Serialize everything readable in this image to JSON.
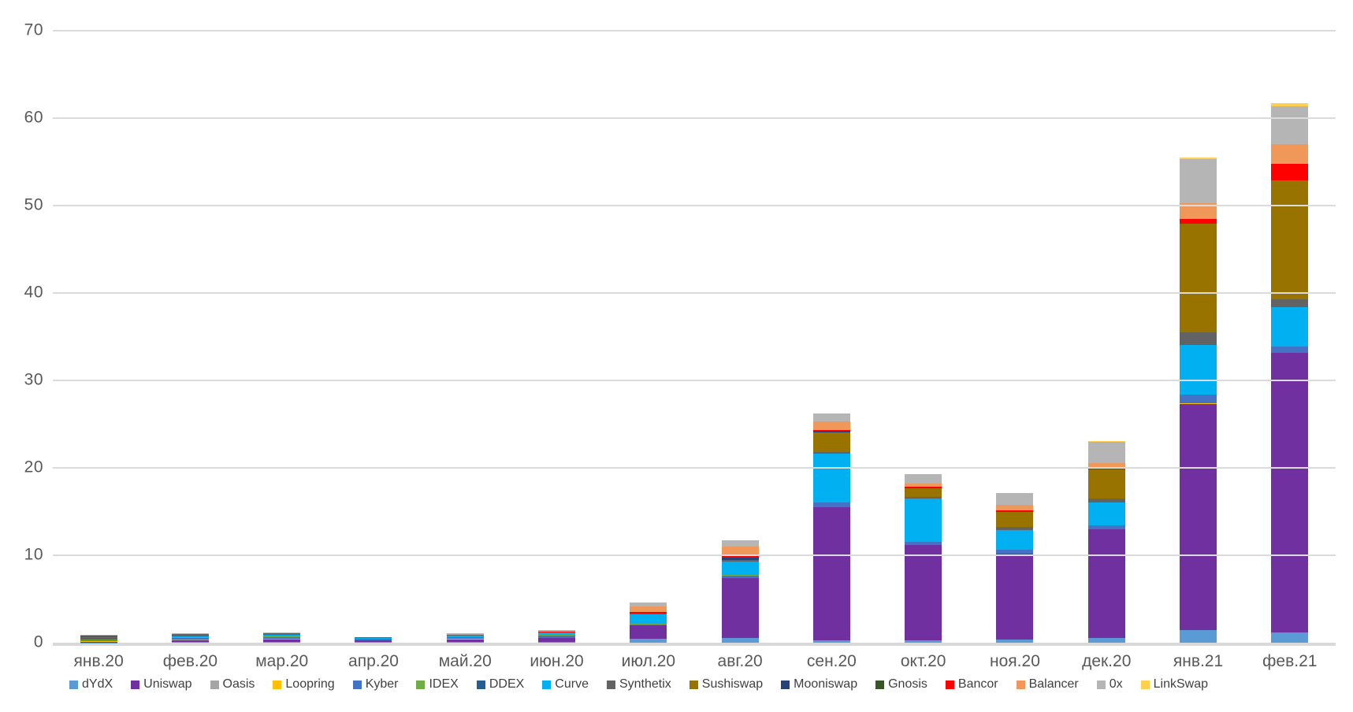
{
  "chart_data": {
    "type": "bar",
    "variant": "stacked",
    "title": "",
    "xlabel": "",
    "ylabel": "",
    "grid": true,
    "legend_position": "bottom",
    "y_axis": {
      "min": 0,
      "max": 70,
      "step": 10,
      "tick_labels": [
        "0",
        "10",
        "20",
        "30",
        "40",
        "50",
        "60",
        "70"
      ]
    },
    "categories": [
      "янв.20",
      "фев.20",
      "мар.20",
      "апр.20",
      "май.20",
      "июн.20",
      "июл.20",
      "авг.20",
      "сен.20",
      "окт.20",
      "ноя.20",
      "дек.20",
      "янв.21",
      "фев.21"
    ],
    "series": [
      {
        "name": "dYdX",
        "color": "#5B9BD5",
        "values": [
          0.03,
          0.05,
          0.05,
          0.1,
          0.07,
          0.05,
          0.45,
          0.55,
          0.25,
          0.3,
          0.4,
          0.5,
          1.4,
          1.2
        ]
      },
      {
        "name": "Uniswap",
        "color": "#7030A0",
        "values": [
          0.05,
          0.25,
          0.35,
          0.2,
          0.33,
          0.5,
          1.5,
          6.85,
          15.25,
          10.9,
          9.8,
          12.5,
          25.9,
          32.0
        ]
      },
      {
        "name": "Oasis",
        "color": "#A5A5A5",
        "values": [
          0.05,
          0.05,
          0.05,
          0,
          0,
          0,
          0,
          0,
          0,
          0,
          0,
          0,
          0,
          0
        ]
      },
      {
        "name": "Loopring",
        "color": "#FFC000",
        "values": [
          0.02,
          0,
          0,
          0,
          0.05,
          0.03,
          0,
          0,
          0,
          0,
          0,
          0,
          0.1,
          0
        ]
      },
      {
        "name": "Kyber",
        "color": "#4472C4",
        "values": [
          0.1,
          0.2,
          0.2,
          0.15,
          0.15,
          0.25,
          0.15,
          0.25,
          0.5,
          0.3,
          0.4,
          0.4,
          1.0,
          0.7
        ]
      },
      {
        "name": "IDEX",
        "color": "#70AD47",
        "values": [
          0.12,
          0.05,
          0.05,
          0,
          0.05,
          0.1,
          0.1,
          0.1,
          0,
          0,
          0,
          0,
          0,
          0
        ]
      },
      {
        "name": "DDEX",
        "color": "#255E91",
        "values": [
          0.05,
          0.05,
          0,
          0,
          0,
          0,
          0,
          0,
          0,
          0,
          0,
          0,
          0,
          0
        ]
      },
      {
        "name": "Curve",
        "color": "#00B0F0",
        "values": [
          0.05,
          0.1,
          0.25,
          0.1,
          0.2,
          0.22,
          1.05,
          1.55,
          5.6,
          5.0,
          2.3,
          2.6,
          5.7,
          4.5
        ]
      },
      {
        "name": "Synthetix",
        "color": "#636363",
        "values": [
          0.3,
          0.25,
          0.15,
          0.05,
          0.1,
          0.05,
          0.1,
          0.2,
          0.2,
          0.15,
          0.35,
          0.5,
          1.4,
          0.9
        ]
      },
      {
        "name": "Sushiswap",
        "color": "#997300",
        "values": [
          0,
          0,
          0,
          0,
          0,
          0,
          0,
          0,
          2.3,
          1.0,
          1.75,
          3.3,
          12.4,
          13.6
        ]
      },
      {
        "name": "Mooniswap",
        "color": "#264478",
        "values": [
          0,
          0,
          0,
          0,
          0,
          0,
          0,
          0.2,
          0.1,
          0.05,
          0,
          0,
          0,
          0
        ]
      },
      {
        "name": "Gnosis",
        "color": "#375623",
        "values": [
          0.02,
          0.02,
          0,
          0,
          0,
          0,
          0,
          0,
          0,
          0,
          0,
          0,
          0,
          0
        ]
      },
      {
        "name": "Bancor",
        "color": "#FF0000",
        "values": [
          0.03,
          0,
          0,
          0,
          0,
          0.1,
          0.2,
          0.2,
          0.15,
          0.1,
          0.15,
          0.3,
          0.6,
          1.9
        ]
      },
      {
        "name": "Balancer",
        "color": "#F0975A",
        "values": [
          0,
          0,
          0,
          0,
          0.05,
          0.05,
          0.6,
          1.1,
          1.0,
          0.4,
          0.65,
          0.4,
          1.8,
          2.2
        ]
      },
      {
        "name": "0x",
        "color": "#B5B5B5",
        "values": [
          0.05,
          0.1,
          0.1,
          0.05,
          0.1,
          0.1,
          0.45,
          0.7,
          0.9,
          1.1,
          1.3,
          2.5,
          5.0,
          4.4
        ]
      },
      {
        "name": "LinkSwap",
        "color": "#FFD04D",
        "values": [
          0,
          0,
          0,
          0,
          0,
          0,
          0,
          0,
          0,
          0,
          0,
          0.1,
          0.2,
          0.3
        ]
      }
    ]
  },
  "style": {
    "gridline_color": "#DBDBDB",
    "baseline_color": "#D9D9D9",
    "axis_text_color": "#595959",
    "legend_text_color": "#404040",
    "background": "#FFFFFF"
  }
}
